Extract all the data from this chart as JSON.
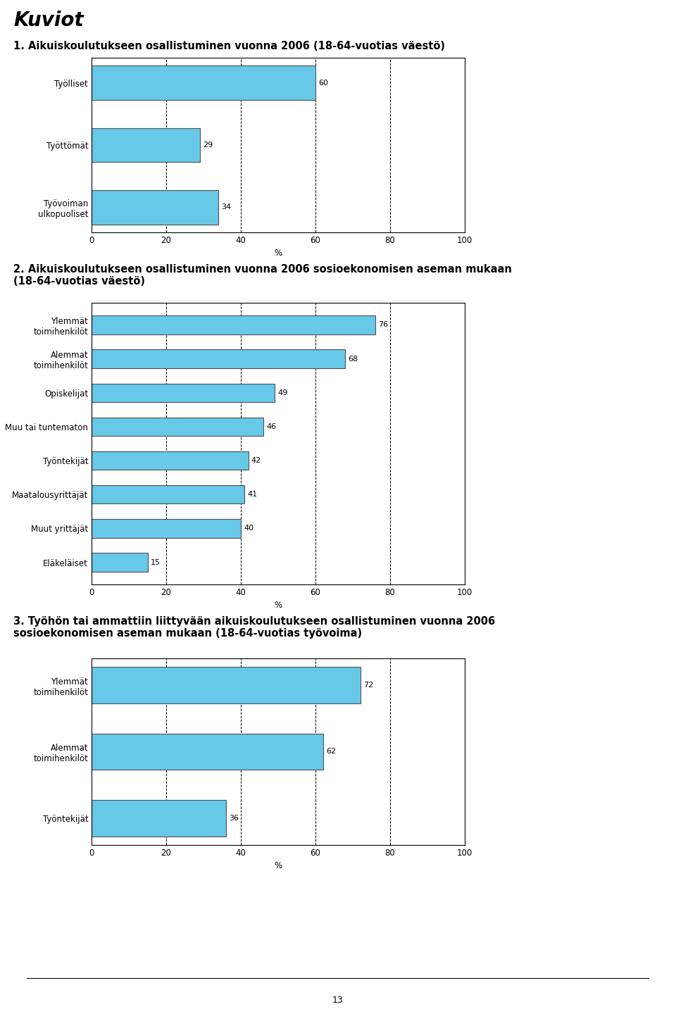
{
  "page_title": "Kuviot",
  "chart1": {
    "title": "1. Aikuiskoulutukseen osallistuminen vuonna 2006 (18-64-vuotias väestö)",
    "categories": [
      "Työlliset",
      "Työttömät",
      "Työvoiman\nulkopuoliset"
    ],
    "values": [
      60,
      29,
      34
    ],
    "xlim": [
      0,
      100
    ],
    "xticks": [
      0,
      20,
      40,
      60,
      80,
      100
    ],
    "xlabel": "%"
  },
  "chart2": {
    "title": "2. Aikuiskoulutukseen osallistuminen vuonna 2006 sosioekonomisen aseman mukaan\n(18-64-vuotias väestö)",
    "categories": [
      "Ylemmät\ntoimihenkilöt",
      "Alemmat\ntoimihenkilöt",
      "Opiskelijat",
      "Muu tai tuntematon",
      "Työntekijät",
      "Maatalousyrittäjät",
      "Muut yrittäjät",
      "Eläkeläiset"
    ],
    "values": [
      76,
      68,
      49,
      46,
      42,
      41,
      40,
      15
    ],
    "xlim": [
      0,
      100
    ],
    "xticks": [
      0,
      20,
      40,
      60,
      80,
      100
    ],
    "xlabel": "%"
  },
  "chart3": {
    "title": "3. Työhön tai ammattiin liittyvään aikuiskoulutukseen osallistuminen vuonna 2006\nsosioekonomisen aseman mukaan (18-64-vuotias työvoima)",
    "categories": [
      "Ylemmät\ntoimihenkilöt",
      "Alemmat\ntoimihenkilöt",
      "Työntekijät"
    ],
    "values": [
      72,
      62,
      36
    ],
    "xlim": [
      0,
      100
    ],
    "xticks": [
      0,
      20,
      40,
      60,
      80,
      100
    ],
    "xlabel": "%"
  },
  "bar_color": "#67C8E8",
  "bar_edgecolor": "#505050",
  "bar_linewidth": 0.8,
  "grid_color": "#000000",
  "grid_linestyle": "--",
  "grid_linewidth": 0.7,
  "page_number": "13",
  "font_size_page_title": 20,
  "font_size_chart_title": 10.5,
  "font_size_tick": 8.5,
  "font_size_label": 8.5,
  "font_size_value": 8,
  "font_size_page_number": 9
}
